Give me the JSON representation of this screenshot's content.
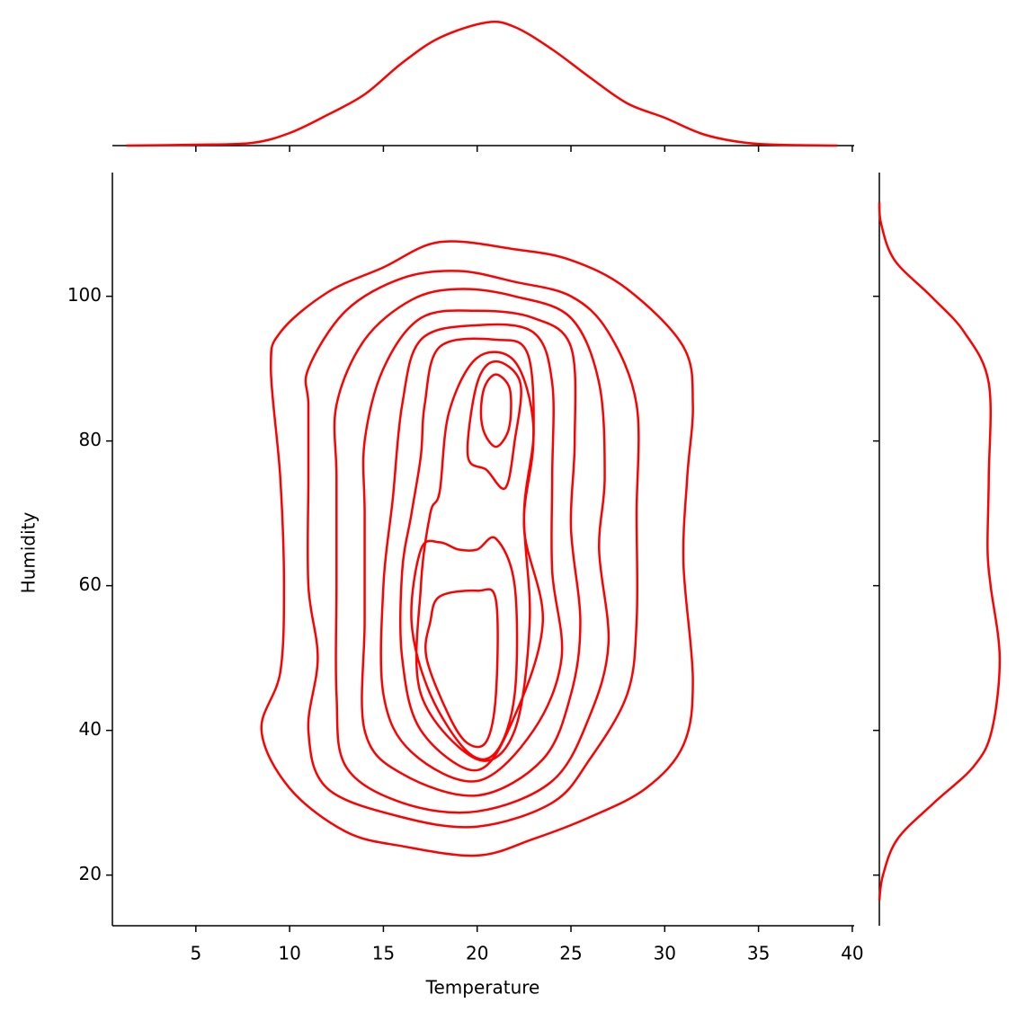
{
  "chart_data": {
    "type": "kde-joint",
    "xlabel": "Temperature",
    "ylabel": "Humidity",
    "color": "#ff0000",
    "xlim": [
      0.55,
      40.1
    ],
    "ylim": [
      13.0,
      117.1
    ],
    "xticks": [
      5,
      10,
      15,
      20,
      25,
      30,
      35,
      40
    ],
    "yticks": [
      20,
      40,
      60,
      80,
      100
    ],
    "contours": [
      {
        "x": [
          9.5,
          12,
          15,
          18,
          22,
          25,
          28,
          31,
          31.5,
          31.2,
          31,
          31.5,
          31,
          29,
          26,
          23,
          20,
          16,
          13,
          10,
          8.5,
          9.5,
          9.7,
          9.5,
          9
        ],
        "y": [
          95,
          100.5,
          104,
          107.5,
          106.5,
          105,
          101,
          93,
          85,
          75,
          63,
          47,
          38,
          32,
          28,
          25,
          22.7,
          24,
          26,
          32,
          40,
          48,
          60,
          75,
          90
        ]
      },
      {
        "x": [
          11,
          13,
          16,
          19,
          22,
          25,
          27,
          28.5,
          28.5,
          28.5,
          28,
          26,
          24,
          20,
          16,
          12,
          11,
          11.5,
          11,
          11,
          11
        ],
        "y": [
          90,
          98,
          102.5,
          103.5,
          102,
          100,
          95,
          85,
          70,
          55,
          45,
          36,
          30,
          26.7,
          28,
          32,
          40,
          50,
          60,
          75,
          85
        ]
      },
      {
        "x": [
          12.5,
          14,
          16.5,
          19,
          22,
          25,
          26.5,
          26.8,
          26.5,
          27,
          26,
          24,
          20,
          16,
          13,
          12.5,
          12.5,
          12.5
        ],
        "y": [
          85,
          94,
          99.5,
          101,
          100,
          97,
          88,
          75,
          65,
          52,
          42,
          33,
          28.8,
          30,
          35,
          45,
          60,
          75
        ]
      },
      {
        "x": [
          14,
          15,
          17,
          20,
          23,
          25,
          25.2,
          25,
          25.5,
          25,
          23.5,
          20,
          16,
          14,
          14,
          14
        ],
        "y": [
          80,
          90,
          97,
          98,
          97,
          93,
          80,
          68,
          55,
          45,
          36,
          31,
          34,
          40,
          55,
          70
        ]
      },
      {
        "x": [
          15.5,
          16,
          17,
          20,
          23,
          24,
          24,
          24,
          24.5,
          23,
          20,
          16.5,
          15,
          15
        ],
        "y": [
          72,
          85,
          94,
          96,
          95,
          88,
          75,
          62,
          50,
          40,
          33,
          37,
          45,
          60
        ]
      },
      {
        "x": [
          16.5,
          17,
          17.2,
          18,
          21,
          22.7,
          23,
          22.5,
          23.5,
          22,
          20,
          17,
          16,
          16
        ],
        "y": [
          70,
          78,
          85,
          93,
          94,
          92,
          80,
          68,
          55,
          42,
          34.5,
          40,
          50,
          62
        ]
      },
      {
        "x": [
          18,
          18.5,
          20,
          22,
          23,
          22.5,
          22.8,
          22,
          20,
          17,
          17,
          17.5
        ],
        "y": [
          73,
          84,
          91.5,
          91,
          82,
          70,
          55,
          40,
          36,
          45,
          60,
          70
        ]
      },
      {
        "x": [
          19.5,
          20,
          21,
          22.3,
          22,
          21.5,
          20.5
        ],
        "y": [
          78,
          88,
          91,
          88,
          80,
          73.5,
          76
        ]
      },
      {
        "x": [
          17,
          18,
          19,
          20,
          21,
          22,
          22,
          21,
          19.5,
          17.5,
          16.5
        ],
        "y": [
          65,
          66,
          65,
          65,
          66.5,
          60,
          45,
          37,
          37,
          45,
          55
        ]
      },
      {
        "x": [
          20.2,
          20.4,
          21,
          21.7,
          21.8,
          21.6,
          21,
          20.4
        ],
        "y": [
          84,
          87.5,
          89.2,
          87.5,
          84,
          81,
          79.2,
          81
        ]
      },
      {
        "x": [
          17.5,
          18,
          20,
          21,
          21,
          20.5,
          19.5,
          18.5,
          17.3
        ],
        "y": [
          55,
          58.5,
          59.3,
          58,
          45,
          38.5,
          38.2,
          42,
          50
        ]
      }
    ],
    "x_marginal": {
      "ylim": [
        0,
        0.072
      ],
      "x": [
        1.3,
        5,
        8,
        10,
        12,
        14,
        16,
        18,
        20.5,
        22,
        24,
        26,
        28,
        30,
        32,
        34,
        36,
        39.2
      ],
      "density": [
        0,
        0.0005,
        0.0015,
        0.007,
        0.017,
        0.0285,
        0.046,
        0.06,
        0.0685,
        0.066,
        0.0535,
        0.038,
        0.0235,
        0.0155,
        0.0065,
        0.002,
        0.0005,
        0
      ]
    },
    "y_marginal": {
      "xlim": [
        0,
        0.021
      ],
      "y": [
        16.5,
        20,
        25,
        30,
        35,
        40,
        50,
        60,
        65,
        75,
        88,
        95,
        100,
        105,
        110,
        113
      ],
      "density": [
        0,
        0.0006,
        0.003,
        0.009,
        0.0155,
        0.0185,
        0.0198,
        0.0183,
        0.0178,
        0.018,
        0.018,
        0.014,
        0.0085,
        0.0025,
        0.0003,
        0
      ]
    }
  }
}
